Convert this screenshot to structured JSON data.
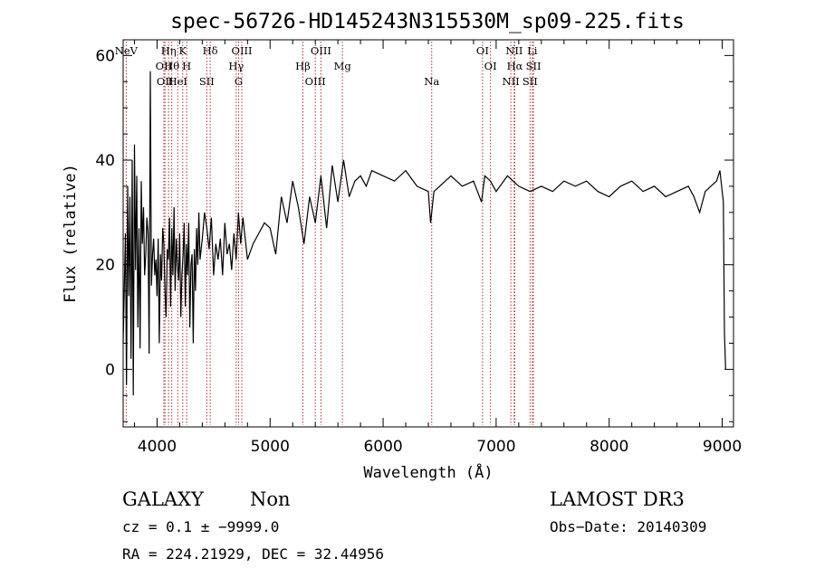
{
  "chart_data": {
    "type": "line",
    "title": "spec-56726-HD145243N315530M_sp09-225.fits",
    "xlabel": "Wavelength (Å)",
    "ylabel": "Flux (relative)",
    "xlim": [
      3700,
      9100
    ],
    "ylim": [
      -11,
      63
    ],
    "x_ticks": [
      4000,
      5000,
      6000,
      7000,
      8000,
      9000
    ],
    "x_tick_labels": [
      "4000",
      "5000",
      "6000",
      "7000",
      "8000",
      "9000"
    ],
    "y_ticks": [
      0,
      20,
      40,
      60
    ],
    "y_tick_labels": [
      "0",
      "20",
      "40",
      "60"
    ],
    "series": [
      {
        "name": "spectrum",
        "x": [
          3700,
          3720,
          3730,
          3740,
          3750,
          3760,
          3770,
          3780,
          3790,
          3800,
          3810,
          3820,
          3830,
          3840,
          3850,
          3860,
          3870,
          3880,
          3890,
          3900,
          3910,
          3920,
          3930,
          3940,
          3950,
          3960,
          3970,
          3980,
          3990,
          4000,
          4010,
          4020,
          4030,
          4040,
          4050,
          4060,
          4070,
          4080,
          4090,
          4100,
          4110,
          4120,
          4130,
          4140,
          4150,
          4160,
          4170,
          4180,
          4190,
          4200,
          4210,
          4220,
          4230,
          4240,
          4250,
          4260,
          4270,
          4280,
          4290,
          4300,
          4310,
          4320,
          4330,
          4340,
          4350,
          4360,
          4370,
          4380,
          4400,
          4420,
          4440,
          4460,
          4480,
          4500,
          4520,
          4540,
          4560,
          4580,
          4600,
          4620,
          4640,
          4660,
          4680,
          4700,
          4720,
          4740,
          4760,
          4800,
          4850,
          4900,
          4950,
          5000,
          5050,
          5100,
          5150,
          5200,
          5250,
          5300,
          5350,
          5400,
          5450,
          5500,
          5550,
          5600,
          5650,
          5700,
          5750,
          5800,
          5850,
          5900,
          6000,
          6100,
          6200,
          6300,
          6400,
          6420,
          6450,
          6500,
          6600,
          6700,
          6800,
          6870,
          6900,
          6950,
          7000,
          7100,
          7150,
          7200,
          7300,
          7400,
          7500,
          7600,
          7700,
          7800,
          7900,
          8000,
          8100,
          8200,
          8300,
          8400,
          8500,
          8600,
          8700,
          8750,
          8800,
          8850,
          8900,
          8950,
          8980,
          9000,
          9010,
          9020,
          9030
        ],
        "values": [
          5,
          26,
          -3,
          35,
          14,
          33,
          2,
          40,
          -5,
          43,
          19,
          37,
          8,
          27,
          4,
          36,
          24,
          31,
          18,
          22,
          29,
          26,
          3,
          57,
          16,
          22,
          25,
          18,
          21,
          14,
          25,
          5,
          22,
          17,
          27,
          24,
          15,
          10,
          23,
          21,
          29,
          12,
          27,
          18,
          31,
          15,
          25,
          20,
          17,
          26,
          10,
          18,
          22,
          28,
          12,
          24,
          18,
          28,
          8,
          20,
          22,
          5,
          23,
          15,
          27,
          20,
          30,
          21,
          25,
          30,
          27,
          23,
          29,
          18,
          24,
          21,
          25,
          18,
          28,
          22,
          24,
          19,
          26,
          21,
          30,
          24,
          29,
          21,
          24,
          26,
          28,
          27,
          22,
          33,
          28,
          36,
          31,
          24,
          33,
          28,
          37,
          27,
          39,
          32,
          40,
          33,
          36,
          37,
          35,
          38,
          37,
          36,
          38,
          35,
          34,
          28,
          34,
          35,
          37,
          35,
          36,
          32,
          37,
          36,
          34,
          37,
          36,
          35,
          34,
          35,
          34,
          36,
          35,
          36,
          34,
          33,
          35,
          36,
          34,
          35,
          33,
          34,
          35,
          33,
          30,
          34,
          35,
          36,
          38,
          34,
          32,
          7,
          0
        ]
      }
    ],
    "line_markers": [
      {
        "x": 3727,
        "label": "NeV"
      },
      {
        "x": 4060,
        "label": "OII"
      },
      {
        "x": 4070,
        "label": "OII"
      },
      {
        "x": 4102,
        "label": "Hη"
      },
      {
        "x": 4130,
        "label": "Hθ"
      },
      {
        "x": 4183,
        "label": "HeI"
      },
      {
        "x": 4227,
        "label": "K"
      },
      {
        "x": 4262,
        "label": "H"
      },
      {
        "x": 4440,
        "label": "SII"
      },
      {
        "x": 4470,
        "label": "Hδ"
      },
      {
        "x": 4700,
        "label": "Hγ"
      },
      {
        "x": 4721,
        "label": "G"
      },
      {
        "x": 4750,
        "label": "OIII"
      },
      {
        "x": 5290,
        "label": "Hβ"
      },
      {
        "x": 5400,
        "label": "OIII"
      },
      {
        "x": 5450,
        "label": "OIII"
      },
      {
        "x": 5640,
        "label": "Mg"
      },
      {
        "x": 6430,
        "label": "Na"
      },
      {
        "x": 6880,
        "label": "OI"
      },
      {
        "x": 6950,
        "label": "OI"
      },
      {
        "x": 7130,
        "label": "NII"
      },
      {
        "x": 7160,
        "label": "NII"
      },
      {
        "x": 7165,
        "label": "Hα"
      },
      {
        "x": 7300,
        "label": "SII"
      },
      {
        "x": 7320,
        "label": "Li"
      },
      {
        "x": 7330,
        "label": "SII"
      }
    ]
  },
  "info": {
    "class": "GALAXY",
    "subclass": "Non",
    "cz": "cz = 0.1 ± −9999.0",
    "coords": "RA = 224.21929, DEC =  32.44956",
    "survey": "LAMOST DR3",
    "obs_date": "Obs−Date: 20140309"
  },
  "colors": {
    "marker": "#b03030",
    "line": "#000000"
  }
}
